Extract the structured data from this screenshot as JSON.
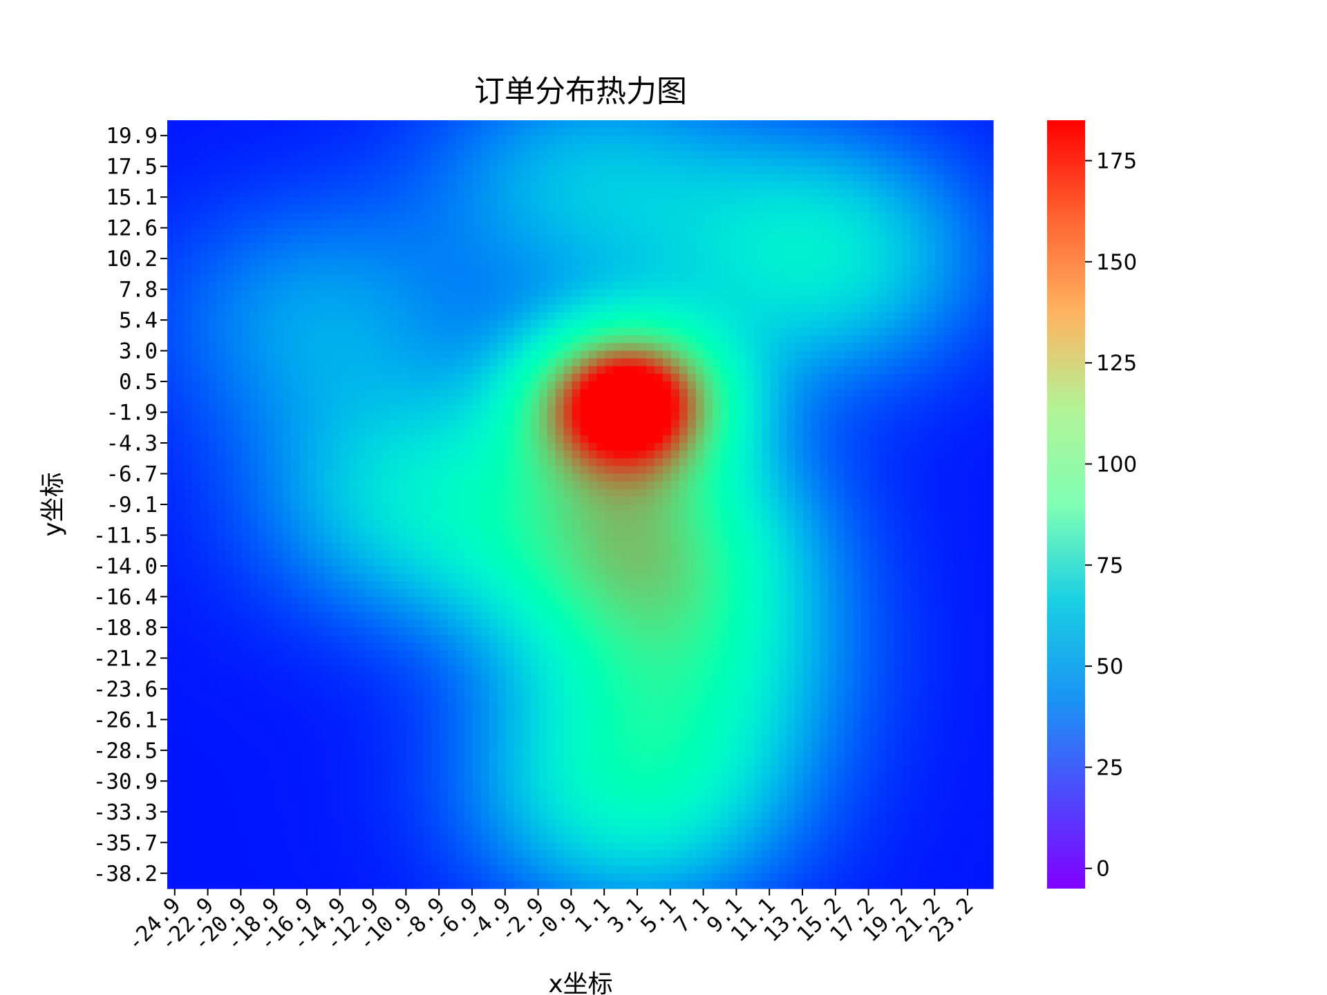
{
  "chart_data": {
    "type": "heatmap",
    "title": "订单分布热力图",
    "xlabel": "x坐标",
    "ylabel": "y坐标",
    "colormap": "rainbow",
    "x_tick_labels": [
      "-24.9",
      "-22.9",
      "-20.9",
      "-18.9",
      "-16.9",
      "-14.9",
      "-12.9",
      "-10.9",
      "-8.9",
      "-6.9",
      "-4.9",
      "-2.9",
      "-0.9",
      "1.1",
      "3.1",
      "5.1",
      "7.1",
      "9.1",
      "11.1",
      "13.2",
      "15.2",
      "17.2",
      "19.2",
      "21.2",
      "23.2"
    ],
    "y_tick_labels": [
      "19.9",
      "17.5",
      "15.1",
      "12.6",
      "10.2",
      "7.8",
      "5.4",
      "3.0",
      "0.5",
      "-1.9",
      "-4.3",
      "-6.7",
      "-9.1",
      "-11.5",
      "-14.0",
      "-16.4",
      "-18.8",
      "-21.2",
      "-23.6",
      "-26.1",
      "-28.5",
      "-30.9",
      "-33.3",
      "-35.7",
      "-38.2"
    ],
    "x_range": [
      -25.0,
      24.6
    ],
    "y_range": [
      20.6,
      -39.6
    ],
    "value_range": [
      -5,
      185
    ],
    "colorbar_ticks": [
      0,
      25,
      50,
      75,
      100,
      125,
      150,
      175
    ],
    "colorbar_tick_labels": [
      "0",
      "25",
      "50",
      "75",
      "100",
      "125",
      "150",
      "175"
    ],
    "hotspots": [
      {
        "x": 2.6,
        "y": -1.2,
        "peak": 185
      },
      {
        "x": 3.2,
        "y": -12.0,
        "peak": 105
      },
      {
        "x": -10.0,
        "y": -9.0,
        "peak": 55
      },
      {
        "x": 3.0,
        "y": -32.0,
        "peak": 70
      },
      {
        "x": 14.0,
        "y": 10.0,
        "peak": 65
      },
      {
        "x": 0.3,
        "y": 15.6,
        "peak": 45
      },
      {
        "x": -16.0,
        "y": 5.0,
        "peak": 35
      },
      {
        "x": 6.0,
        "y": -22.0,
        "peak": 55
      }
    ]
  }
}
